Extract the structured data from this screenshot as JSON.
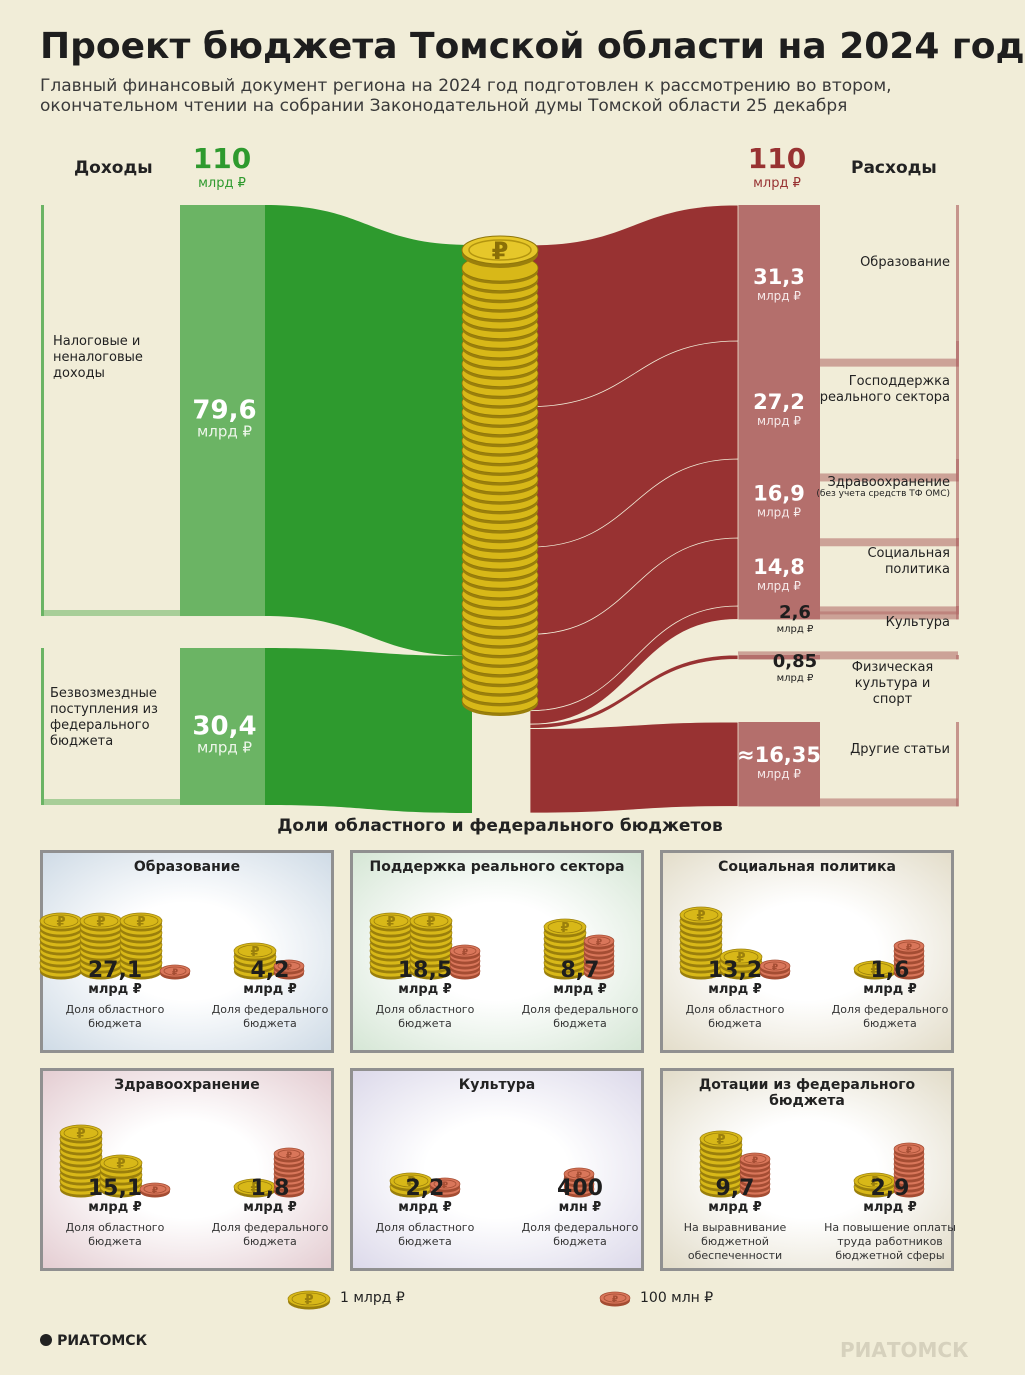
{
  "title": "Проект бюджета Томской области на 2024 год",
  "subtitle": "Главный финансовый документ региона на 2024 год подготовлен к рассмотрению во втором, окончательном чтении на собрании Законодательной думы Томской области 25 декабря",
  "colors": {
    "income": "#2e9a2e",
    "income_light": "#6bb464",
    "expense": "#983232",
    "expense_light": "#b46f6c",
    "coin_gold": "#d8b818",
    "coin_copper": "#d9765a"
  },
  "chart_data": [
    {
      "type": "sankey",
      "income": {
        "header": "Доходы",
        "total": "110",
        "unit": "млрд ₽",
        "items": [
          {
            "label": "Налоговые и неналоговые доходы",
            "value": 79.6,
            "value_text": "79,6",
            "unit": "млрд ₽"
          },
          {
            "label": "Безвозмездные поступления из федерального бюджета",
            "value": 30.4,
            "value_text": "30,4",
            "unit": "млрд ₽"
          }
        ]
      },
      "expenses": {
        "header": "Расходы",
        "total": "110",
        "unit": "млрд ₽",
        "items": [
          {
            "label": "Образование",
            "note": "",
            "value": 31.3,
            "value_text": "31,3",
            "unit": "млрд ₽"
          },
          {
            "label": "Господдержка реального сектора",
            "note": "",
            "value": 27.2,
            "value_text": "27,2",
            "unit": "млрд ₽"
          },
          {
            "label": "Здравоохранение",
            "note": "(без учета средств ТФ ОМС)",
            "value": 16.9,
            "value_text": "16,9",
            "unit": "млрд ₽"
          },
          {
            "label": "Социальная политика",
            "note": "",
            "value": 14.8,
            "value_text": "14,8",
            "unit": "млрд ₽"
          },
          {
            "label": "Культура",
            "note": "",
            "value": 2.6,
            "value_text": "2,6",
            "unit": "млрд ₽"
          },
          {
            "label": "Физическая культура и спорт",
            "note": "",
            "value": 0.85,
            "value_text": "0,85",
            "unit": "млрд ₽"
          },
          {
            "label": "Другие статьи",
            "note": "",
            "value": 16.35,
            "value_text": "≈16,35",
            "unit": "млрд ₽"
          }
        ]
      }
    },
    {
      "type": "pictogram",
      "title": "Доли областного и федерального бюджетов",
      "unit_legend": {
        "gold": "1 млрд ₽",
        "copper": "100 млн ₽"
      },
      "panels": [
        {
          "title": "Образование",
          "tint": "#cfdbe6",
          "left": {
            "value": 27.1,
            "value_text": "27,1",
            "unit": "млрд ₽",
            "caption": "Доля областного бюджета",
            "gold_stacks": [
              9,
              9,
              9
            ],
            "copper_stacks": [
              1
            ]
          },
          "right": {
            "value": 4.2,
            "value_text": "4,2",
            "unit": "млрд ₽",
            "caption": "Доля федерального бюджета",
            "gold_stacks": [
              4
            ],
            "copper_stacks": [
              2
            ]
          }
        },
        {
          "title": "Поддержка реального сектора",
          "tint": "#d5e6d5",
          "left": {
            "value": 18.5,
            "value_text": "18,5",
            "unit": "млрд ₽",
            "caption": "Доля областного бюджета",
            "gold_stacks": [
              9,
              9
            ],
            "copper_stacks": [
              5
            ]
          },
          "right": {
            "value": 8.7,
            "value_text": "8,7",
            "unit": "млрд ₽",
            "caption": "Доля федерального бюджета",
            "gold_stacks": [
              8
            ],
            "copper_stacks": [
              7
            ]
          }
        },
        {
          "title": "Социальная политика",
          "tint": "#e3ddca",
          "left": {
            "value": 13.2,
            "value_text": "13,2",
            "unit": "млрд ₽",
            "caption": "Доля областного бюджета",
            "gold_stacks": [
              10,
              3
            ],
            "copper_stacks": [
              2
            ]
          },
          "right": {
            "value": 1.6,
            "value_text": "1,6",
            "unit": "млрд ₽",
            "caption": "Доля федерального бюджета",
            "gold_stacks": [
              1
            ],
            "copper_stacks": [
              6
            ]
          }
        },
        {
          "title": "Здравоохранение",
          "tint": "#e4cdd2",
          "left": {
            "value": 15.1,
            "value_text": "15,1",
            "unit": "млрд ₽",
            "caption": "Доля областного бюджета",
            "gold_stacks": [
              10,
              5
            ],
            "copper_stacks": [
              1
            ]
          },
          "right": {
            "value": 1.8,
            "value_text": "1,8",
            "unit": "млрд ₽",
            "caption": "Доля федерального бюджета",
            "gold_stacks": [
              1
            ],
            "copper_stacks": [
              8
            ]
          }
        },
        {
          "title": "Культура",
          "tint": "#dcd9ea",
          "left": {
            "value": 2.2,
            "value_text": "2,2",
            "unit": "млрд ₽",
            "caption": "Доля областного бюджета",
            "gold_stacks": [
              2
            ],
            "copper_stacks": [
              2
            ]
          },
          "right": {
            "value": 0.4,
            "value_text": "400",
            "unit": "млн ₽",
            "caption": "Доля федерального бюджета",
            "gold_stacks": [],
            "copper_stacks": [
              4
            ]
          }
        },
        {
          "title": "Дотации из федерального бюджета",
          "tint": "#e2dcc9",
          "left": {
            "value": 9.7,
            "value_text": "9,7",
            "unit": "млрд ₽",
            "caption": "На выравнивание бюджетной обеспеченности",
            "gold_stacks": [
              9
            ],
            "copper_stacks": [
              7
            ]
          },
          "right": {
            "value": 2.9,
            "value_text": "2,9",
            "unit": "млрд ₽",
            "caption": "На повышение оплаты труда работников бюджетной сферы",
            "gold_stacks": [
              2
            ],
            "copper_stacks": [
              9
            ]
          }
        }
      ]
    }
  ],
  "footer": {
    "logo_left": "РИАТОМСК",
    "watermark": "РИАТОМСК"
  }
}
